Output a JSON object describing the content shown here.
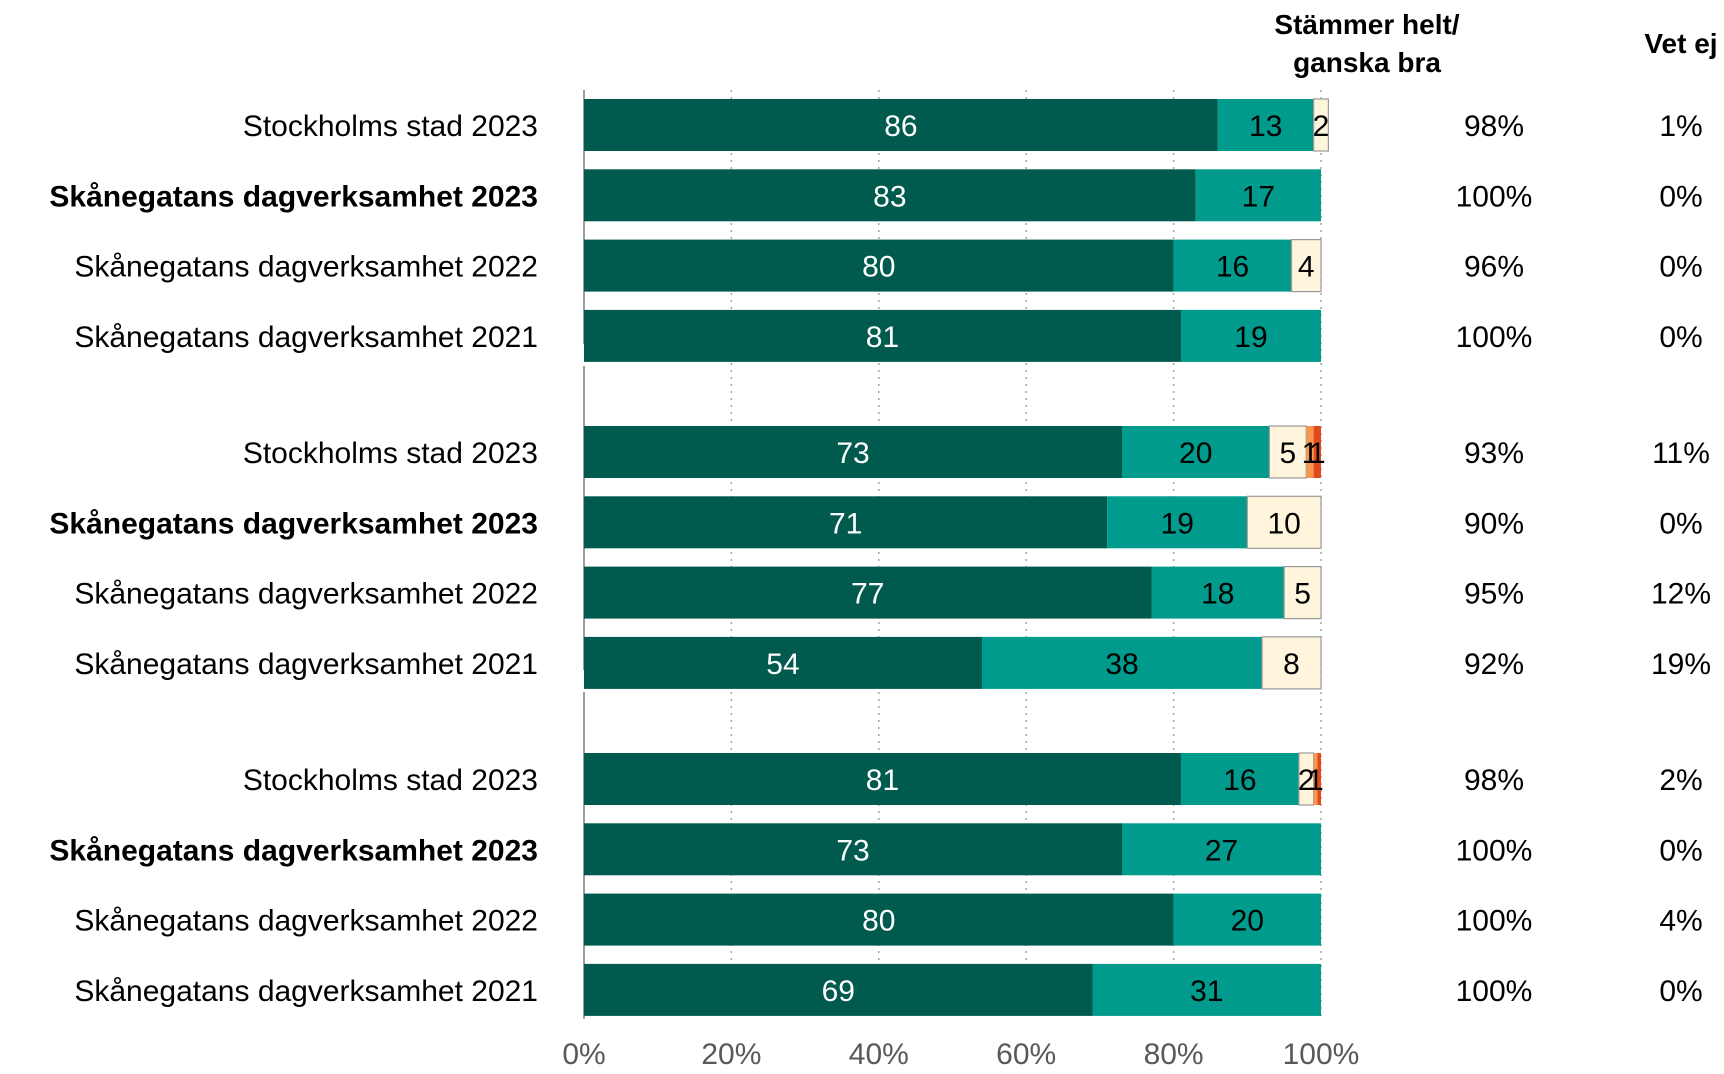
{
  "chart_data": {
    "type": "bar",
    "orientation": "horizontal",
    "stacked": true,
    "xlim": [
      0,
      100
    ],
    "x_ticks": [
      "0%",
      "20%",
      "40%",
      "60%",
      "80%",
      "100%"
    ],
    "grid": "vertical dotted",
    "column_headers": {
      "col1_line1": "Stämmer helt/",
      "col1_line2": "ganska bra",
      "col2": "Vet ej"
    },
    "segment_colors": [
      "#005a4e",
      "#009b8c",
      "#fef5dc",
      "#f79650",
      "#e34a1a"
    ],
    "segment_label_colors": [
      "#ffffff",
      "#000000",
      "#000000",
      "#000000",
      "#000000"
    ],
    "groups": [
      {
        "rows": [
          {
            "label": "Stockholms stad 2023",
            "bold": false,
            "values": [
              86,
              13,
              2,
              0,
              0
            ],
            "labels": [
              "86",
              "13",
              "2",
              "",
              ""
            ],
            "col1": "98%",
            "col2": "1%"
          },
          {
            "label": "Skånegatans dagverksamhet 2023",
            "bold": true,
            "values": [
              83,
              17,
              0,
              0,
              0
            ],
            "labels": [
              "83",
              "17",
              "",
              "",
              ""
            ],
            "col1": "100%",
            "col2": "0%"
          },
          {
            "label": "Skånegatans dagverksamhet 2022",
            "bold": false,
            "values": [
              80,
              16,
              4,
              0,
              0
            ],
            "labels": [
              "80",
              "16",
              "4",
              "",
              ""
            ],
            "col1": "96%",
            "col2": "0%"
          },
          {
            "label": "Skånegatans dagverksamhet 2021",
            "bold": false,
            "values": [
              81,
              19,
              0,
              0,
              0
            ],
            "labels": [
              "81",
              "19",
              "",
              "",
              ""
            ],
            "col1": "100%",
            "col2": "0%"
          }
        ]
      },
      {
        "rows": [
          {
            "label": "Stockholms stad 2023",
            "bold": false,
            "values": [
              73,
              20,
              5,
              1,
              1
            ],
            "labels": [
              "73",
              "20",
              "5",
              "1",
              "1"
            ],
            "col1": "93%",
            "col2": "11%"
          },
          {
            "label": "Skånegatans dagverksamhet 2023",
            "bold": true,
            "values": [
              71,
              19,
              10,
              0,
              0
            ],
            "labels": [
              "71",
              "19",
              "10",
              "",
              ""
            ],
            "col1": "90%",
            "col2": "0%"
          },
          {
            "label": "Skånegatans dagverksamhet 2022",
            "bold": false,
            "values": [
              77,
              18,
              5,
              0,
              0
            ],
            "labels": [
              "77",
              "18",
              "5",
              "",
              ""
            ],
            "col1": "95%",
            "col2": "12%"
          },
          {
            "label": "Skånegatans dagverksamhet 2021",
            "bold": false,
            "values": [
              54,
              38,
              8,
              0,
              0
            ],
            "labels": [
              "54",
              "38",
              "8",
              "",
              ""
            ],
            "col1": "92%",
            "col2": "19%"
          }
        ]
      },
      {
        "rows": [
          {
            "label": "Stockholms stad 2023",
            "bold": false,
            "values": [
              81,
              16,
              2,
              0.5,
              0.5
            ],
            "labels": [
              "81",
              "16",
              "2",
              "1",
              ""
            ],
            "col1": "98%",
            "col2": "2%"
          },
          {
            "label": "Skånegatans dagverksamhet 2023",
            "bold": true,
            "values": [
              73,
              27,
              0,
              0,
              0
            ],
            "labels": [
              "73",
              "27",
              "",
              "",
              ""
            ],
            "col1": "100%",
            "col2": "0%"
          },
          {
            "label": "Skånegatans dagverksamhet 2022",
            "bold": false,
            "values": [
              80,
              20,
              0,
              0,
              0
            ],
            "labels": [
              "80",
              "20",
              "",
              "",
              ""
            ],
            "col1": "100%",
            "col2": "4%"
          },
          {
            "label": "Skånegatans dagverksamhet 2021",
            "bold": false,
            "values": [
              69,
              31,
              0,
              0,
              0
            ],
            "labels": [
              "69",
              "31",
              "",
              "",
              ""
            ],
            "col1": "100%",
            "col2": "0%"
          }
        ]
      }
    ]
  }
}
